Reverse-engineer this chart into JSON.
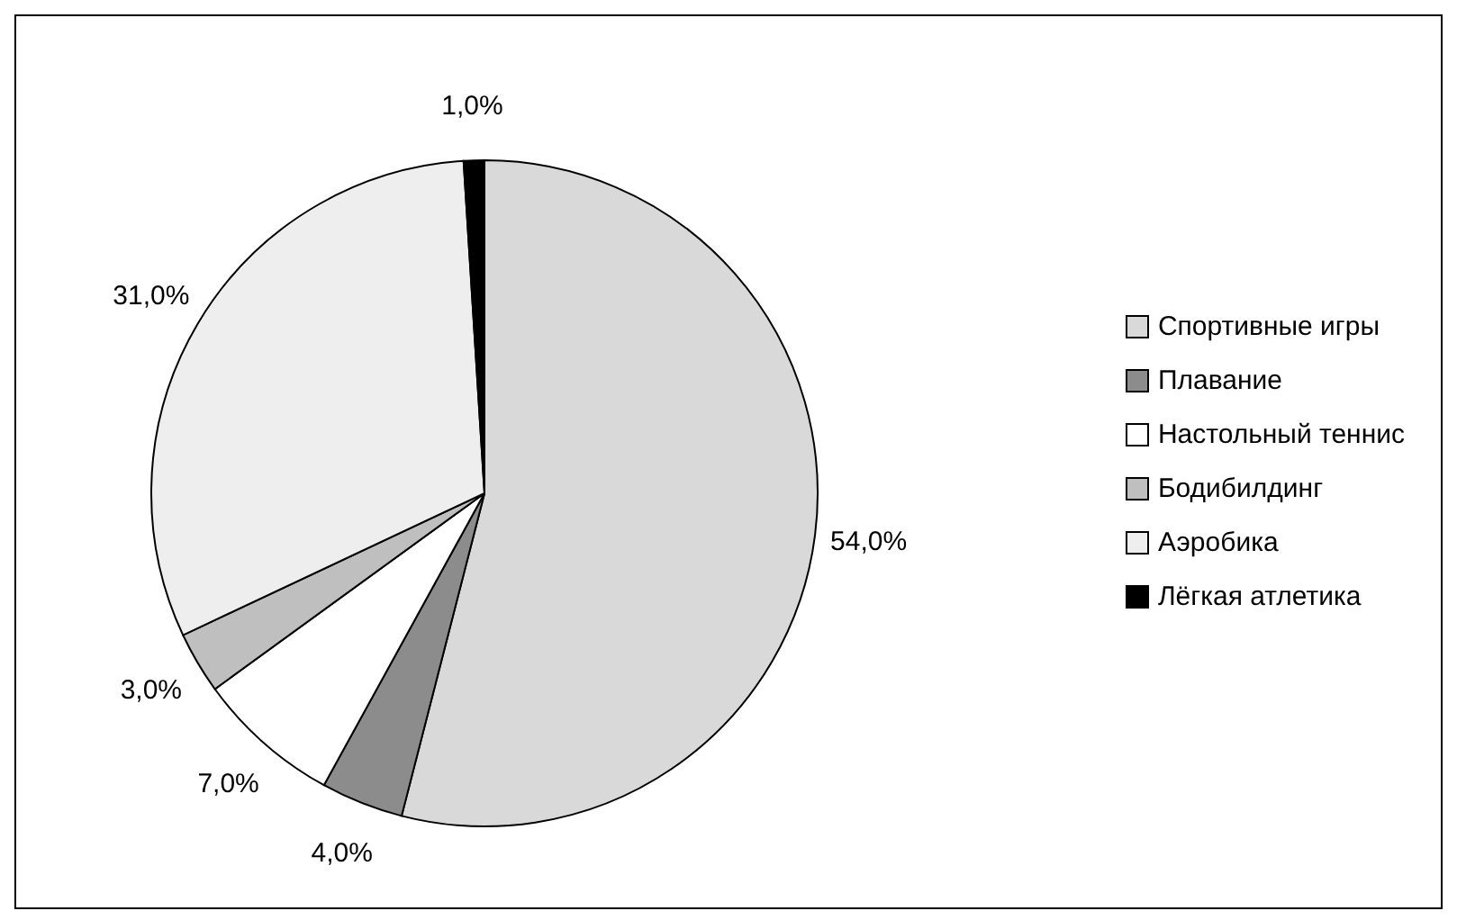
{
  "chart_data": {
    "type": "pie",
    "categories": [
      "Спортивные игры",
      "Плавание",
      "Настольный теннис",
      "Бодибилдинг",
      "Аэробика",
      "Лёгкая атлетика"
    ],
    "values": [
      54,
      4,
      7,
      3,
      31,
      1
    ],
    "value_labels": [
      "54,0%",
      "4,0%",
      "7,0%",
      "3,0%",
      "31,0%",
      "1,0%"
    ],
    "colors": [
      "#d9d9d9",
      "#8c8c8c",
      "#ffffff",
      "#bfbfbf",
      "#eeeeee",
      "#000000"
    ],
    "legend": "right"
  }
}
